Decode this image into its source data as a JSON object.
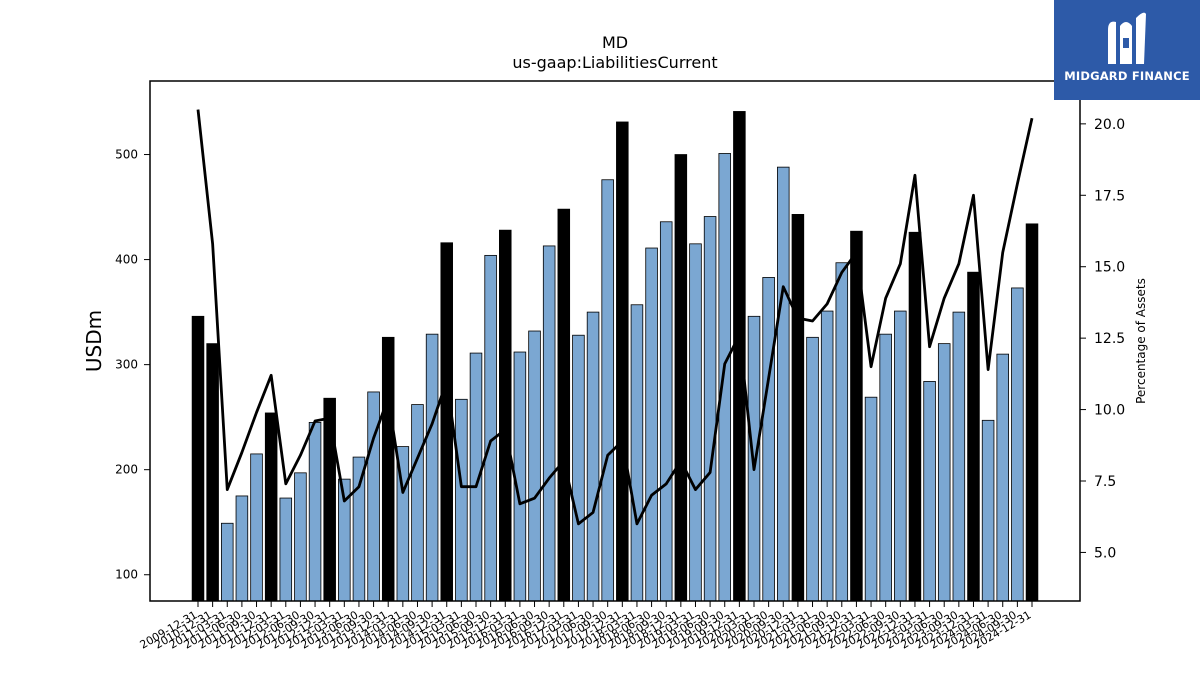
{
  "chart_data": {
    "type": "bar",
    "title": "MD",
    "subtitle": "us-gaap:LiabilitiesCurrent",
    "ylabel": "USDm",
    "y2label": "Percentage of Assets",
    "ylim": [
      75,
      570
    ],
    "y2lim": [
      3.3,
      21.5
    ],
    "yticks": [
      100,
      200,
      300,
      400,
      500
    ],
    "y2ticks": [
      5.0,
      7.5,
      10.0,
      12.5,
      15.0,
      17.5,
      20.0
    ],
    "categories": [
      "2009-12-31",
      "2010-12-31",
      "2011-03-31",
      "2011-06-30",
      "2011-09-30",
      "2011-12-31",
      "2012-03-31",
      "2012-06-30",
      "2012-09-30",
      "2012-12-31",
      "2013-03-31",
      "2013-06-30",
      "2013-09-30",
      "2013-12-31",
      "2014-03-31",
      "2014-06-30",
      "2014-09-30",
      "2014-12-31",
      "2015-03-31",
      "2015-06-30",
      "2015-09-30",
      "2015-12-31",
      "2016-03-31",
      "2016-06-30",
      "2016-09-30",
      "2016-12-31",
      "2017-03-31",
      "2017-06-30",
      "2017-09-30",
      "2017-12-31",
      "2018-03-31",
      "2018-06-30",
      "2018-09-30",
      "2018-12-31",
      "2019-03-31",
      "2019-06-30",
      "2019-09-30",
      "2019-12-31",
      "2020-03-31",
      "2020-06-30",
      "2020-09-30",
      "2020-12-31",
      "2021-03-31",
      "2021-06-30",
      "2021-09-30",
      "2021-12-31",
      "2022-03-31",
      "2022-06-30",
      "2022-09-30",
      "2022-12-31",
      "2023-03-31",
      "2023-06-30",
      "2023-09-30",
      "2023-12-31",
      "2024-03-31",
      "2024-06-30",
      "2024-09-30",
      "2024-12-31"
    ],
    "series": [
      {
        "name": "LiabilitiesCurrent",
        "values": [
          346,
          320,
          149,
          175,
          215,
          254,
          173,
          197,
          245,
          268,
          191,
          212,
          274,
          326,
          222,
          262,
          329,
          416,
          267,
          311,
          404,
          428,
          312,
          332,
          413,
          448,
          328,
          350,
          476,
          531,
          357,
          411,
          436,
          500,
          415,
          441,
          501,
          541,
          346,
          383,
          488,
          443,
          326,
          351,
          397,
          427,
          269,
          329,
          351,
          426,
          284,
          320,
          350,
          388,
          247,
          310,
          373,
          434
        ]
      },
      {
        "name": "Percentage of Assets",
        "values": [
          20.5,
          15.8,
          7.2,
          8.5,
          9.9,
          11.2,
          7.4,
          8.4,
          9.6,
          9.7,
          6.8,
          7.3,
          9.0,
          10.4,
          7.1,
          8.3,
          9.5,
          11.0,
          7.3,
          7.3,
          8.9,
          9.3,
          6.7,
          6.9,
          7.6,
          8.2,
          6.0,
          6.4,
          8.4,
          8.9,
          6.0,
          7.0,
          7.4,
          8.2,
          7.2,
          7.8,
          11.6,
          12.6,
          7.9,
          11.1,
          14.3,
          13.2,
          13.1,
          13.7,
          14.8,
          15.5,
          11.5,
          13.9,
          15.1,
          18.2,
          12.2,
          13.9,
          15.1,
          17.5,
          11.4,
          15.5,
          17.9,
          20.2
        ]
      }
    ],
    "highlight_color": "#000000",
    "bar_color": "#7ba7d2",
    "line_color": "#000000"
  },
  "logo": {
    "text": "MIDGARD FINANCE",
    "background": "#2d5aa8"
  }
}
